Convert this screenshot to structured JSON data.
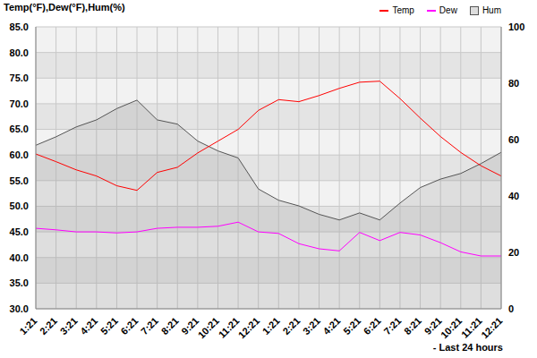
{
  "chart_data": {
    "type": "line",
    "y_label": "Temp(°F),Dew(°F),Hum(%)",
    "x_label": "- Last 24 hours",
    "categories": [
      "1:21",
      "2:21",
      "3:21",
      "4:21",
      "5:21",
      "6:21",
      "7:21",
      "8:21",
      "9:21",
      "10:21",
      "11:21",
      "12:21",
      "1:21",
      "2:21",
      "3:21",
      "4:21",
      "5:21",
      "6:21",
      "7:21",
      "8:21",
      "9:21",
      "10:21",
      "11:21",
      "12:21"
    ],
    "series": [
      {
        "name": "Temp",
        "color": "#ff0000",
        "type": "line",
        "values": [
          60.2,
          58.7,
          57.1,
          55.9,
          54.0,
          53.1,
          56.6,
          57.6,
          60.4,
          62.7,
          65.0,
          68.7,
          70.8,
          70.4,
          71.6,
          73.0,
          74.2,
          74.4,
          71.0,
          67.2,
          63.6,
          60.5,
          57.9,
          55.9
        ]
      },
      {
        "name": "Dew",
        "color": "#ff00ff",
        "type": "line",
        "values": [
          45.7,
          45.4,
          45.0,
          45.0,
          44.8,
          45.0,
          45.7,
          45.9,
          45.9,
          46.1,
          46.9,
          45.0,
          44.7,
          42.7,
          41.7,
          41.3,
          44.9,
          43.3,
          44.9,
          44.4,
          42.9,
          41.1,
          40.3,
          40.3
        ]
      },
      {
        "name": "Hum",
        "color": "#555555",
        "type": "area",
        "axis": "y2",
        "values": [
          58,
          61,
          64.5,
          67,
          71,
          74,
          67,
          65.5,
          59.5,
          56,
          53.5,
          42.5,
          38.5,
          36.5,
          33.5,
          31.5,
          34,
          31.5,
          37.5,
          43,
          46,
          48,
          51.5,
          55.5
        ]
      }
    ],
    "ylim": [
      30,
      85
    ],
    "yticks": [
      {
        "value": 30,
        "label": "30.0"
      },
      {
        "value": 35,
        "label": "35.0"
      },
      {
        "value": 40,
        "label": "40.0"
      },
      {
        "value": 45,
        "label": "45.0"
      },
      {
        "value": 50,
        "label": "50.0"
      },
      {
        "value": 55,
        "label": "55.0"
      },
      {
        "value": 60,
        "label": "60.0"
      },
      {
        "value": 65,
        "label": "65.0"
      },
      {
        "value": 70,
        "label": "70.0"
      },
      {
        "value": 75,
        "label": "75.0"
      },
      {
        "value": 80,
        "label": "80.0"
      },
      {
        "value": 85,
        "label": "85.0"
      }
    ],
    "y2lim": [
      0,
      100
    ],
    "y2ticks": [
      0,
      20,
      40,
      60,
      80,
      100
    ],
    "grid": true,
    "legend": "upper right"
  }
}
